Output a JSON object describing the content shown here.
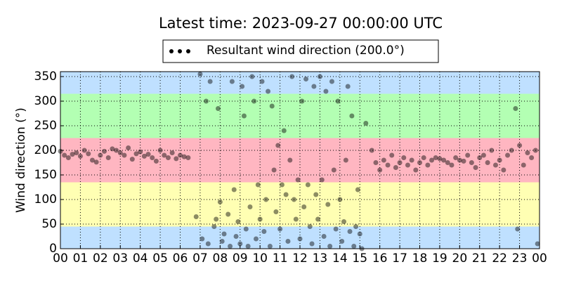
{
  "chart_data": {
    "type": "scatter",
    "title": "Latest time: 2023-09-27 00:00:00 UTC",
    "y_label": "Wind direction (°)",
    "xlim": [
      0,
      24
    ],
    "ylim": [
      0,
      360
    ],
    "xticks": [
      {
        "value": 0,
        "label": "00"
      },
      {
        "value": 1,
        "label": "01"
      },
      {
        "value": 2,
        "label": "02"
      },
      {
        "value": 3,
        "label": "03"
      },
      {
        "value": 4,
        "label": "04"
      },
      {
        "value": 5,
        "label": "05"
      },
      {
        "value": 6,
        "label": "06"
      },
      {
        "value": 7,
        "label": "07"
      },
      {
        "value": 8,
        "label": "08"
      },
      {
        "value": 9,
        "label": "09"
      },
      {
        "value": 10,
        "label": "10"
      },
      {
        "value": 11,
        "label": "11"
      },
      {
        "value": 12,
        "label": "12"
      },
      {
        "value": 13,
        "label": "13"
      },
      {
        "value": 14,
        "label": "14"
      },
      {
        "value": 15,
        "label": "15"
      },
      {
        "value": 16,
        "label": "16"
      },
      {
        "value": 17,
        "label": "17"
      },
      {
        "value": 18,
        "label": "18"
      },
      {
        "value": 19,
        "label": "19"
      },
      {
        "value": 20,
        "label": "20"
      },
      {
        "value": 21,
        "label": "21"
      },
      {
        "value": 22,
        "label": "22"
      },
      {
        "value": 23,
        "label": "23"
      },
      {
        "value": 24,
        "label": "00"
      }
    ],
    "yticks": [
      0,
      50,
      100,
      150,
      200,
      250,
      300,
      350
    ],
    "grid": true,
    "bands": [
      {
        "from": 0,
        "to": 45,
        "color": "#bfe0ff"
      },
      {
        "from": 45,
        "to": 135,
        "color": "#ffffb3"
      },
      {
        "from": 135,
        "to": 225,
        "color": "#ffb6c1"
      },
      {
        "from": 225,
        "to": 315,
        "color": "#b3ffb3"
      },
      {
        "from": 315,
        "to": 360,
        "color": "#bfe0ff"
      }
    ],
    "legend_position": "top",
    "series": [
      {
        "name": "Resultant wind direction (200.0°)",
        "color": "#000000",
        "x": [
          0.0,
          0.2,
          0.4,
          0.6,
          0.8,
          1.0,
          1.2,
          1.4,
          1.6,
          1.8,
          2.0,
          2.2,
          2.4,
          2.6,
          2.8,
          3.0,
          3.2,
          3.4,
          3.6,
          3.8,
          4.0,
          4.2,
          4.4,
          4.6,
          4.8,
          5.0,
          5.2,
          5.4,
          5.6,
          5.8,
          6.0,
          6.2,
          6.4,
          6.8,
          7.0,
          7.1,
          7.3,
          7.4,
          7.5,
          7.7,
          7.8,
          7.9,
          8.0,
          8.1,
          8.2,
          8.4,
          8.5,
          8.6,
          8.7,
          8.8,
          8.9,
          9.0,
          9.1,
          9.2,
          9.3,
          9.4,
          9.5,
          9.6,
          9.7,
          9.8,
          9.9,
          10.0,
          10.1,
          10.2,
          10.3,
          10.4,
          10.5,
          10.6,
          10.7,
          10.8,
          10.9,
          11.0,
          11.1,
          11.2,
          11.3,
          11.4,
          11.5,
          11.6,
          11.7,
          11.8,
          11.9,
          12.0,
          12.1,
          12.2,
          12.3,
          12.4,
          12.5,
          12.6,
          12.7,
          12.8,
          12.9,
          13.0,
          13.1,
          13.2,
          13.3,
          13.4,
          13.5,
          13.6,
          13.7,
          13.8,
          13.9,
          14.0,
          14.1,
          14.2,
          14.3,
          14.4,
          14.5,
          14.6,
          14.7,
          14.8,
          14.9,
          15.0,
          15.1,
          15.3,
          15.6,
          15.8,
          16.0,
          16.2,
          16.4,
          16.6,
          16.8,
          17.0,
          17.2,
          17.4,
          17.6,
          17.8,
          18.0,
          18.2,
          18.4,
          18.6,
          18.8,
          19.0,
          19.2,
          19.4,
          19.6,
          19.8,
          20.0,
          20.2,
          20.4,
          20.6,
          20.8,
          21.0,
          21.2,
          21.4,
          21.6,
          21.8,
          22.0,
          22.2,
          22.4,
          22.6,
          22.8,
          22.9,
          23.0,
          23.2,
          23.4,
          23.6,
          23.8,
          23.9
        ],
        "values": [
          198,
          190,
          185,
          192,
          195,
          188,
          200,
          193,
          180,
          176,
          190,
          198,
          185,
          203,
          200,
          195,
          190,
          205,
          182,
          193,
          197,
          188,
          192,
          185,
          178,
          200,
          190,
          185,
          195,
          183,
          190,
          187,
          185,
          65,
          355,
          20,
          300,
          10,
          340,
          45,
          60,
          285,
          95,
          15,
          30,
          70,
          5,
          340,
          120,
          25,
          55,
          10,
          330,
          270,
          40,
          5,
          85,
          350,
          300,
          20,
          130,
          60,
          340,
          35,
          100,
          320,
          5,
          290,
          160,
          75,
          210,
          40,
          130,
          240,
          110,
          15,
          180,
          350,
          100,
          60,
          140,
          20,
          300,
          85,
          345,
          130,
          45,
          10,
          330,
          110,
          60,
          350,
          140,
          25,
          320,
          90,
          5,
          340,
          160,
          40,
          300,
          100,
          15,
          55,
          180,
          330,
          35,
          270,
          5,
          45,
          120,
          30,
          0,
          255,
          200,
          175,
          160,
          180,
          170,
          190,
          165,
          175,
          185,
          170,
          180,
          160,
          175,
          185,
          170,
          180,
          185,
          183,
          180,
          175,
          170,
          185,
          180,
          178,
          190,
          175,
          165,
          185,
          190,
          175,
          200,
          170,
          180,
          160,
          190,
          200,
          285,
          40,
          210,
          170,
          195,
          185,
          200,
          10
        ]
      }
    ]
  }
}
